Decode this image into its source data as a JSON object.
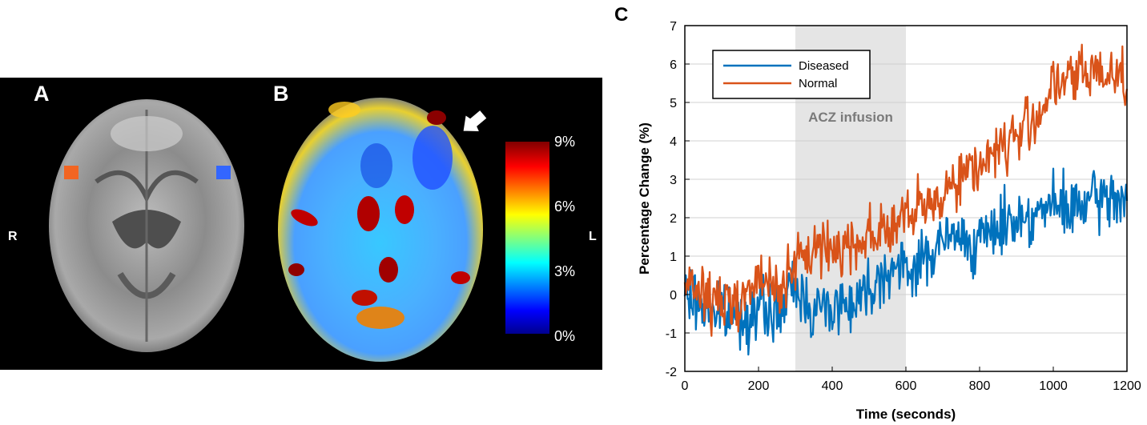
{
  "panels": {
    "a_label": "A",
    "b_label": "B",
    "c_label": "C",
    "right_side": "R",
    "left_side": "L",
    "colorbar_ticks": [
      "9%",
      "6%",
      "3%",
      "0%"
    ],
    "roi_colors": {
      "normal": "#f26522",
      "diseased": "#3366ff"
    }
  },
  "chart_data": {
    "type": "line",
    "xlabel": "Time (seconds)",
    "ylabel": "Percentage Change (%)",
    "xlim": [
      0,
      1200
    ],
    "ylim": [
      -2,
      7
    ],
    "xticks": [
      "0",
      "200",
      "400",
      "600",
      "800",
      "1000",
      "1200"
    ],
    "yticks": [
      "-2",
      "-1",
      "0",
      "1",
      "2",
      "3",
      "4",
      "5",
      "6",
      "7"
    ],
    "grid": "horizontal",
    "legend_position": "top-left",
    "annotation": {
      "text": "ACZ infusion",
      "x_range": [
        300,
        600
      ]
    },
    "x": [
      0,
      50,
      100,
      150,
      200,
      250,
      300,
      350,
      400,
      450,
      500,
      550,
      600,
      650,
      700,
      750,
      800,
      850,
      900,
      950,
      1000,
      1050,
      1100,
      1150,
      1200
    ],
    "series": [
      {
        "name": "Diseased",
        "color": "#0072bd",
        "values": [
          0.0,
          -0.3,
          -0.5,
          -0.6,
          -0.4,
          -0.5,
          0.2,
          -0.4,
          -0.3,
          -0.2,
          0.2,
          0.7,
          0.6,
          0.9,
          1.4,
          1.5,
          1.3,
          1.8,
          2.0,
          2.1,
          2.3,
          2.2,
          2.4,
          2.5,
          2.6
        ]
      },
      {
        "name": "Normal",
        "color": "#d95319",
        "values": [
          0.2,
          0.0,
          -0.3,
          0.0,
          0.3,
          0.2,
          0.7,
          1.2,
          1.2,
          1.3,
          1.6,
          1.7,
          2.0,
          2.2,
          2.7,
          3.1,
          3.4,
          3.8,
          4.1,
          4.6,
          5.4,
          5.6,
          5.8,
          5.8,
          5.7
        ]
      }
    ]
  }
}
